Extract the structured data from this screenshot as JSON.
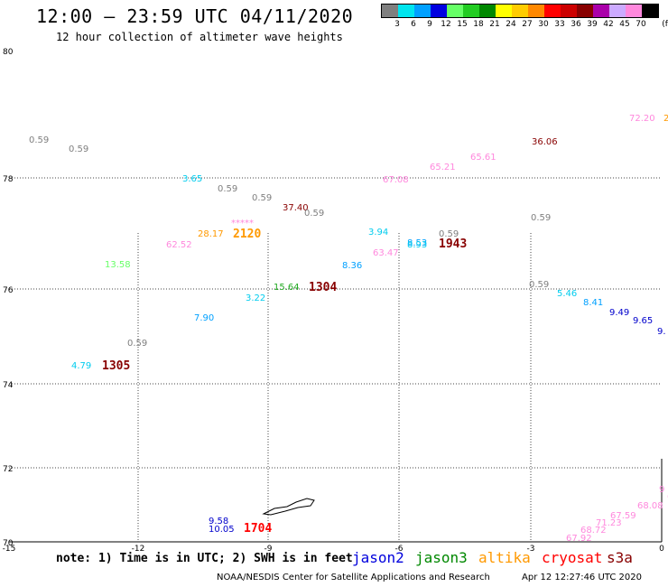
{
  "header": {
    "title": "12:00 — 23:59 UTC 04/11/2020",
    "subtitle": "12 hour collection of altimeter wave heights"
  },
  "legend": {
    "unit": "(ft)",
    "bins": [
      {
        "label": "3",
        "color": "#7f7f7f"
      },
      {
        "label": "6",
        "color": "#00e5ee"
      },
      {
        "label": "9",
        "color": "#00a0ff"
      },
      {
        "label": "12",
        "color": "#0000e0"
      },
      {
        "label": "15",
        "color": "#66ff66"
      },
      {
        "label": "18",
        "color": "#22cc22"
      },
      {
        "label": "21",
        "color": "#008800"
      },
      {
        "label": "24",
        "color": "#ffff00"
      },
      {
        "label": "27",
        "color": "#ffcc00"
      },
      {
        "label": "30",
        "color": "#ff8800"
      },
      {
        "label": "33",
        "color": "#ff0000"
      },
      {
        "label": "36",
        "color": "#cc0000"
      },
      {
        "label": "39",
        "color": "#880000"
      },
      {
        "label": "42",
        "color": "#aa00aa"
      },
      {
        "label": "45",
        "color": "#ccaaff"
      },
      {
        "label": "70",
        "color": "#ff88dd"
      },
      {
        "label": "",
        "color": "#000000"
      }
    ]
  },
  "axes": {
    "lat_ticks": [
      "80",
      "78",
      "76",
      "74",
      "72",
      "70"
    ],
    "lon_ticks": [
      "-15",
      "-12",
      "-9",
      "-6",
      "-3",
      "0"
    ]
  },
  "observations": [
    {
      "text": "0.59",
      "color": "#7f7f7f"
    },
    {
      "text": "0.59",
      "color": "#7f7f7f"
    },
    {
      "text": "3.65",
      "color": "#00ccee"
    },
    {
      "text": "0.59",
      "color": "#7f7f7f"
    },
    {
      "text": "0.59",
      "color": "#7f7f7f"
    },
    {
      "text": "37.40",
      "color": "#880000"
    },
    {
      "text": "0.59",
      "color": "#7f7f7f"
    },
    {
      "text": "*****",
      "color": "#ff88dd"
    },
    {
      "text": "28.17",
      "color": "#ff9900"
    },
    {
      "text": "62.52",
      "color": "#ff88dd"
    },
    {
      "text": "13.58",
      "color": "#66ff66"
    },
    {
      "text": "67.08",
      "color": "#ff88dd"
    },
    {
      "text": "65.21",
      "color": "#ff88dd"
    },
    {
      "text": "65.61",
      "color": "#ff88dd"
    },
    {
      "text": "36.06",
      "color": "#880000"
    },
    {
      "text": "72.20",
      "color": "#ff88dd"
    },
    {
      "text": "2",
      "color": "#ff9900"
    },
    {
      "text": "0.59",
      "color": "#7f7f7f"
    },
    {
      "text": "3.94",
      "color": "#00ccee"
    },
    {
      "text": "63.47",
      "color": "#ff88dd"
    },
    {
      "text": "8.53",
      "color": "#00a0ff"
    },
    {
      "text": "8.93",
      "color": "#00ccee"
    },
    {
      "text": "0.59",
      "color": "#7f7f7f"
    },
    {
      "text": "8.36",
      "color": "#00a0ff"
    },
    {
      "text": "15.64",
      "color": "#22aa22"
    },
    {
      "text": "3.22",
      "color": "#00ccee"
    },
    {
      "text": "0.59",
      "color": "#7f7f7f"
    },
    {
      "text": "5.46",
      "color": "#00ccee"
    },
    {
      "text": "8.41",
      "color": "#00a0ff"
    },
    {
      "text": "9.49",
      "color": "#0000cc"
    },
    {
      "text": "9.65",
      "color": "#0000cc"
    },
    {
      "text": "9.",
      "color": "#0000cc"
    },
    {
      "text": "7.90",
      "color": "#00a0ff"
    },
    {
      "text": "0.59",
      "color": "#7f7f7f"
    },
    {
      "text": "4.79",
      "color": "#00ccee"
    },
    {
      "text": "9.58",
      "color": "#0000cc"
    },
    {
      "text": "10.05",
      "color": "#0000cc"
    },
    {
      "text": "9",
      "color": "#ff88dd"
    },
    {
      "text": "69.5",
      "color": "#ff88dd"
    },
    {
      "text": "68.08",
      "color": "#ff88dd"
    },
    {
      "text": "67.59",
      "color": "#ff88dd"
    },
    {
      "text": "71.23",
      "color": "#ff88dd"
    },
    {
      "text": "68.72",
      "color": "#ff88dd"
    },
    {
      "text": "67.92",
      "color": "#ff88dd"
    }
  ],
  "time_labels": [
    {
      "text": "2120",
      "color": "#ff9900"
    },
    {
      "text": "1943",
      "color": "#880000"
    },
    {
      "text": "1304",
      "color": "#880000"
    },
    {
      "text": "1305",
      "color": "#880000"
    },
    {
      "text": "1704",
      "color": "#ff0000"
    }
  ],
  "note": "note: 1) Time is in UTC; 2) SWH is in feet",
  "satellites": [
    {
      "name": "jason2",
      "color": "#0000dd"
    },
    {
      "name": "jason3",
      "color": "#008800"
    },
    {
      "name": "altika",
      "color": "#ff9900"
    },
    {
      "name": "cryosat",
      "color": "#ff0000"
    },
    {
      "name": "s3a",
      "color": "#880000"
    }
  ],
  "footer": {
    "credit": "NOAA/NESDIS Center for Satellite Applications and Research",
    "timestamp": "Apr 12 12:27:46 UTC 2020"
  }
}
